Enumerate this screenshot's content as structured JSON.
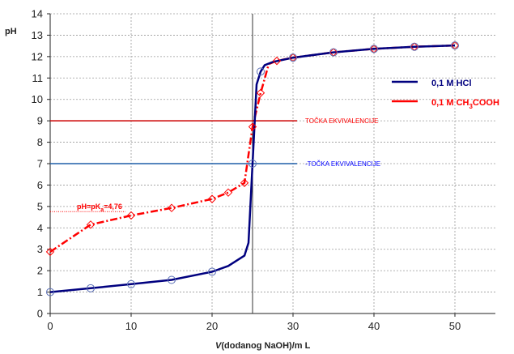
{
  "chart_data": {
    "type": "line",
    "ylabel": "pH",
    "xlabel_italic": "V",
    "xlabel_rest": "(dodanog NaOH)/m L",
    "xlim": [
      0,
      55
    ],
    "ylim": [
      0,
      14
    ],
    "x_ticks": [
      0,
      10,
      20,
      30,
      40,
      50
    ],
    "y_ticks": [
      0,
      1,
      2,
      3,
      4,
      5,
      6,
      7,
      8,
      9,
      10,
      11,
      12,
      13,
      14
    ],
    "grid": true,
    "legend_position": "right",
    "series": [
      {
        "name": "0,1 M HCl",
        "color": "#00007f",
        "style": "solid",
        "marker": "circle",
        "x": [
          0,
          5,
          10,
          15,
          20,
          22,
          24,
          24.5,
          25,
          25.5,
          26,
          26.5,
          27.5,
          30,
          35,
          40,
          45,
          50
        ],
        "y": [
          1.0,
          1.18,
          1.37,
          1.57,
          1.95,
          2.22,
          2.7,
          3.3,
          7.0,
          10.7,
          11.3,
          11.6,
          11.75,
          11.95,
          12.2,
          12.36,
          12.46,
          12.52
        ],
        "marker_x": [
          0,
          5,
          10,
          15,
          20,
          25,
          26,
          30,
          35,
          40,
          45,
          50
        ],
        "marker_y": [
          1.0,
          1.18,
          1.37,
          1.57,
          1.95,
          7.0,
          11.3,
          11.95,
          12.2,
          12.36,
          12.46,
          12.52
        ]
      },
      {
        "name_prefix": "0,1 M  CH",
        "name_sub": "3",
        "name_suffix": "COOH",
        "color": "#ff0000",
        "style": "dash-dot",
        "marker": "diamond",
        "x": [
          0,
          5,
          10,
          15,
          20,
          22,
          24,
          25,
          26,
          27,
          28,
          30,
          35,
          40,
          45,
          50
        ],
        "y": [
          2.88,
          4.15,
          4.58,
          4.93,
          5.35,
          5.65,
          6.1,
          8.72,
          10.3,
          11.65,
          11.8,
          11.95,
          12.2,
          12.36,
          12.46,
          12.52
        ],
        "marker_x": [
          0,
          5,
          10,
          15,
          20,
          22,
          24,
          25,
          26,
          28,
          30,
          35,
          40,
          45,
          50
        ],
        "marker_y": [
          2.88,
          4.15,
          4.58,
          4.93,
          5.35,
          5.65,
          6.1,
          8.72,
          10.3,
          11.8,
          11.95,
          12.2,
          12.36,
          12.46,
          12.52
        ]
      }
    ],
    "annotations": [
      {
        "text": "TOČKA EKVIVALENCIJE",
        "y": 9,
        "x_end": 30.5,
        "color": "#ff0000"
      },
      {
        "text": "TOČKA EKVIVALENCIJE",
        "y": 7,
        "x_end": 30.5,
        "color": "#0000ff",
        "prefix": "-"
      }
    ],
    "pka_label": {
      "prefix": "pH=pK",
      "sub": "a",
      "suffix": "=4,76",
      "y": 4.76
    },
    "equivalence_volume": 25
  },
  "colors": {
    "hcl_curve": "#00007f",
    "acetic_curve": "#ff0000",
    "hcl_marker": "#5a6fb5",
    "line_ph9": "#cc0000",
    "line_ph7": "#1f5fa8",
    "vertical_line": "#333333"
  }
}
